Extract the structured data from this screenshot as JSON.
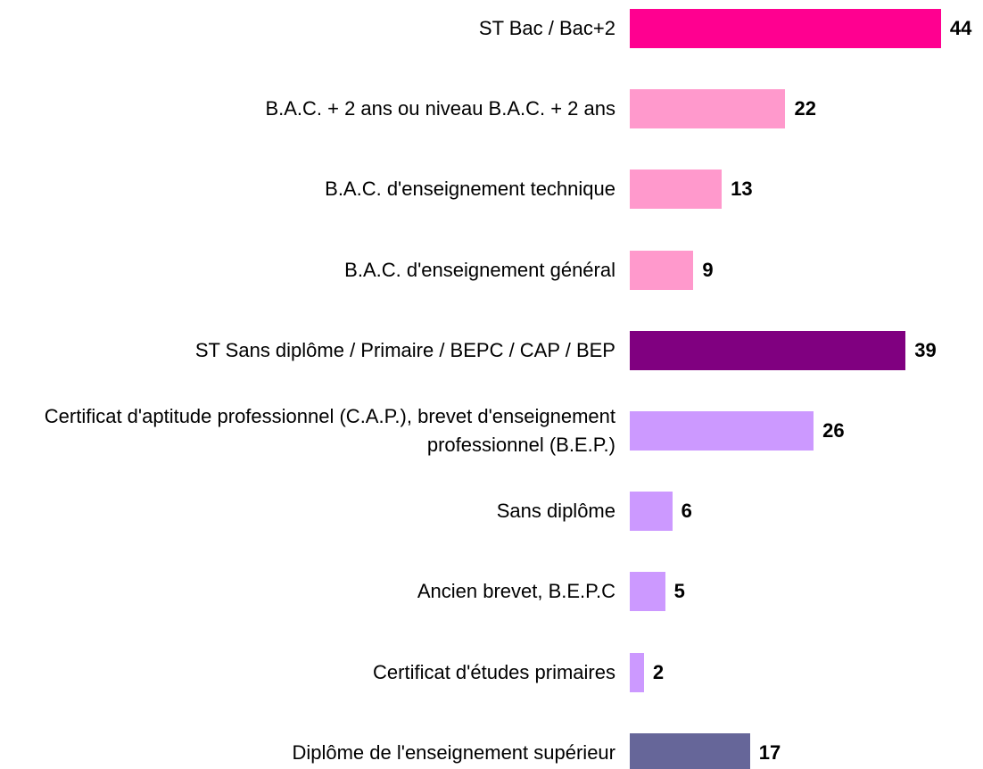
{
  "chart_data": {
    "type": "bar",
    "orientation": "horizontal",
    "categories": [
      "ST Bac / Bac+2",
      "B.A.C. + 2 ans ou niveau B.A.C. + 2 ans",
      "B.A.C. d'enseignement technique",
      "B.A.C. d'enseignement général",
      "ST Sans diplôme / Primaire / BEPC / CAP / BEP",
      "Certificat d'aptitude professionnel (C.A.P.), brevet d'enseignement professionnel (B.E.P.)",
      "Sans diplôme",
      "Ancien brevet, B.E.P.C",
      "Certificat d'études primaires",
      "Diplôme de l'enseignement supérieur"
    ],
    "values": [
      44,
      22,
      13,
      9,
      39,
      26,
      6,
      5,
      2,
      17
    ],
    "colors": [
      "#ff0090",
      "#ff99cc",
      "#ff99cc",
      "#ff99cc",
      "#800080",
      "#cc99ff",
      "#cc99ff",
      "#cc99ff",
      "#cc99ff",
      "#666699"
    ]
  }
}
